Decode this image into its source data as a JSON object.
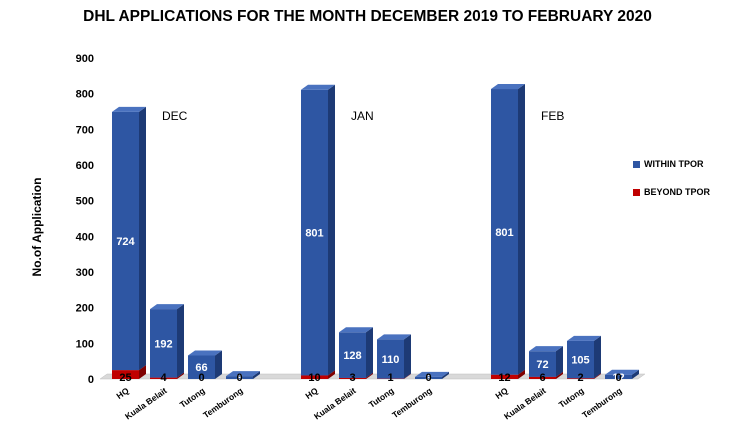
{
  "chart_data": {
    "type": "bar",
    "title": "DHL APPLICATIONS FOR THE MONTH DECEMBER 2019 TO FEBRUARY 2020",
    "ylabel": "No.of Application",
    "xlabel": "",
    "ylim": [
      0,
      900
    ],
    "yticks": [
      "0",
      "100",
      "200",
      "300",
      "400",
      "500",
      "600",
      "700",
      "800",
      "900"
    ],
    "stacked": true,
    "grid": false,
    "legend_position": "right",
    "groups": [
      {
        "label": "DEC",
        "categories": [
          "HQ",
          "Kuala Belait",
          "Tutong",
          "Temburong"
        ]
      },
      {
        "label": "JAN",
        "categories": [
          "HQ",
          "Kuala Belait",
          "Tutong",
          "Temburong"
        ]
      },
      {
        "label": "FEB",
        "categories": [
          "HQ",
          "Kuala Belait",
          "Tutong",
          "Temburong"
        ]
      }
    ],
    "series": [
      {
        "name": "WITHIN TPOR",
        "color": "#2e56a3",
        "values": [
          [
            724,
            192,
            66,
            8
          ],
          [
            801,
            128,
            110,
            6
          ],
          [
            801,
            72,
            105,
            12
          ]
        ]
      },
      {
        "name": "BEYOND TPOR",
        "color": "#c00000",
        "values": [
          [
            25,
            4,
            0,
            0
          ],
          [
            10,
            3,
            1,
            0
          ],
          [
            12,
            6,
            2,
            0
          ]
        ]
      }
    ]
  }
}
